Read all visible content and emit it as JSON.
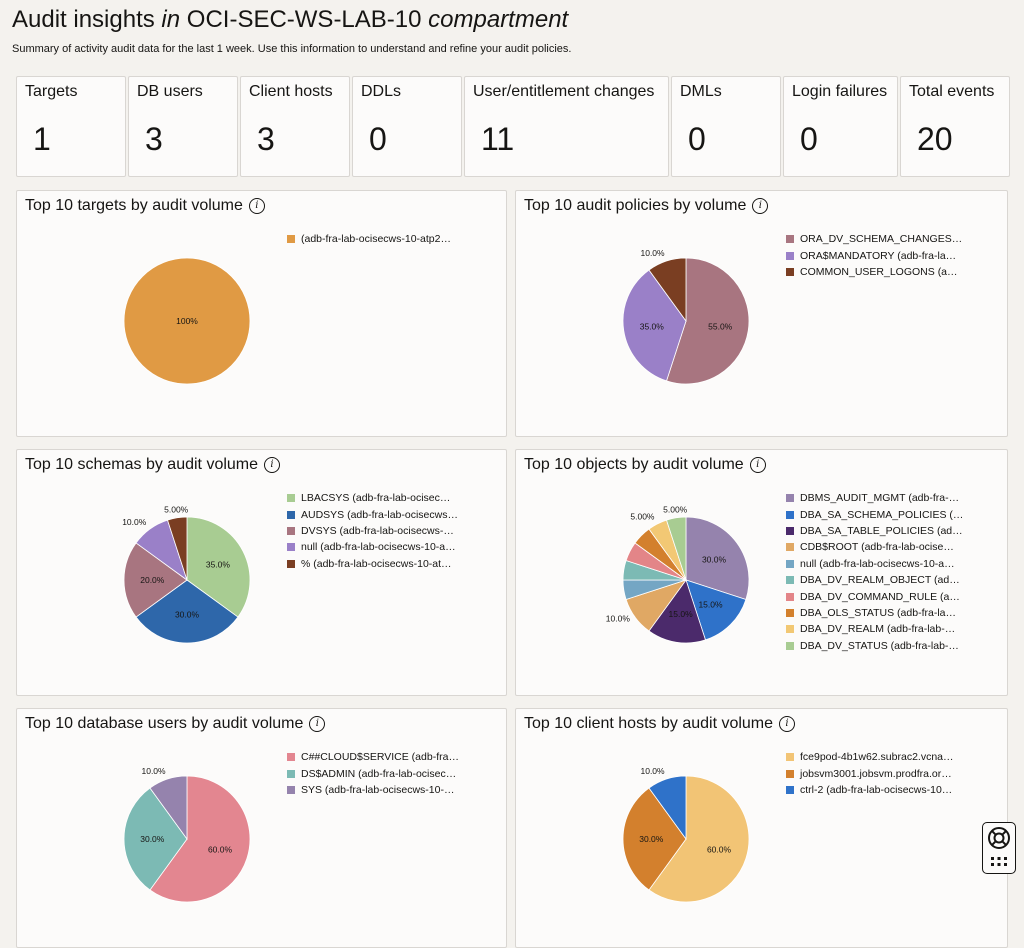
{
  "header": {
    "title_prefix": "Audit insights",
    "title_in": "in",
    "compartment": "OCI-SEC-WS-LAB-10",
    "title_suffix": "compartment",
    "subtitle": "Summary of activity audit data for the last 1 week. Use this information to understand and refine your audit policies."
  },
  "tiles": [
    {
      "label": "Targets",
      "value": "1"
    },
    {
      "label": "DB users",
      "value": "3"
    },
    {
      "label": "Client hosts",
      "value": "3"
    },
    {
      "label": "DDLs",
      "value": "0"
    },
    {
      "label": "User/entitlement changes",
      "value": "11"
    },
    {
      "label": "DMLs",
      "value": "0"
    },
    {
      "label": "Login failures",
      "value": "0"
    },
    {
      "label": "Total events",
      "value": "20"
    }
  ],
  "info_icon": "info-icon",
  "help_icon": "lifebuoy-icon",
  "chart_data": [
    {
      "type": "pie",
      "title": "Top 10 targets by audit volume",
      "categories": [
        "(adb-fra-lab-ocisecws-10-atp2…"
      ],
      "values": [
        100
      ],
      "labels": [
        "100%"
      ],
      "colors": [
        "#e09a44"
      ]
    },
    {
      "type": "pie",
      "title": "Top 10 audit policies by volume",
      "categories": [
        "ORA_DV_SCHEMA_CHANGES…",
        "ORA$MANDATORY (adb-fra-la…",
        "COMMON_USER_LOGONS (a…"
      ],
      "values": [
        55,
        35,
        10
      ],
      "labels": [
        "55.0%",
        "35.0%",
        "10.0%"
      ],
      "colors": [
        "#a87580",
        "#9a80c8",
        "#7a3e22"
      ]
    },
    {
      "type": "pie",
      "title": "Top 10 schemas by audit volume",
      "categories": [
        "LBACSYS (adb-fra-lab-ocisec…",
        "AUDSYS (adb-fra-lab-ocisecws…",
        "DVSYS (adb-fra-lab-ocisecws-…",
        "null (adb-fra-lab-ocisecws-10-a…",
        "% (adb-fra-lab-ocisecws-10-at…"
      ],
      "values": [
        35,
        30,
        20,
        10,
        5
      ],
      "labels": [
        "35.0%",
        "30.0%",
        "20.0%",
        "10.0%",
        "5.00%"
      ],
      "colors": [
        "#a8cc92",
        "#2e67aa",
        "#a87580",
        "#9a80c8",
        "#7a3e22"
      ]
    },
    {
      "type": "pie",
      "title": "Top 10 objects by audit volume",
      "categories": [
        "DBMS_AUDIT_MGMT (adb-fra-…",
        "DBA_SA_SCHEMA_POLICIES (…",
        "DBA_SA_TABLE_POLICIES (ad…",
        "CDB$ROOT (adb-fra-lab-ocise…",
        "null (adb-fra-lab-ocisecws-10-a…",
        "DBA_DV_REALM_OBJECT (ad…",
        "DBA_DV_COMMAND_RULE (a…",
        "DBA_OLS_STATUS (adb-fra-la…",
        "DBA_DV_REALM (adb-fra-lab-…",
        "DBA_DV_STATUS (adb-fra-lab-…"
      ],
      "values": [
        30,
        15,
        15,
        10,
        5,
        5,
        5,
        5,
        5,
        5
      ],
      "labels": [
        "30.0%",
        "15.0%",
        "15.0%",
        "10.0%",
        "",
        "",
        "",
        "",
        "5.00%",
        "5.00%"
      ],
      "colors": [
        "#9583ad",
        "#2f72c9",
        "#4b2a6b",
        "#e0a864",
        "#74a6c4",
        "#7cbab4",
        "#e38588",
        "#d3802d",
        "#f2c874",
        "#a8cc92"
      ]
    },
    {
      "type": "pie",
      "title": "Top 10 database users by audit volume",
      "categories": [
        "C##CLOUD$SERVICE (adb-fra…",
        "DS$ADMIN (adb-fra-lab-ocisec…",
        "SYS (adb-fra-lab-ocisecws-10-…"
      ],
      "values": [
        60,
        30,
        10
      ],
      "labels": [
        "60.0%",
        "30.0%",
        "10.0%"
      ],
      "colors": [
        "#e38690",
        "#7cbab4",
        "#9583ad"
      ]
    },
    {
      "type": "pie",
      "title": "Top 10 client hosts by audit volume",
      "categories": [
        "fce9pod-4b1w62.subrac2.vcna…",
        "jobsvm3001.jobsvm.prodfra.or…",
        "ctrl-2 (adb-fra-lab-ocisecws-10…"
      ],
      "values": [
        60,
        30,
        10
      ],
      "labels": [
        "60.0%",
        "30.0%",
        "10.0%"
      ],
      "colors": [
        "#f2c475",
        "#d3802d",
        "#2f72c9"
      ]
    }
  ]
}
